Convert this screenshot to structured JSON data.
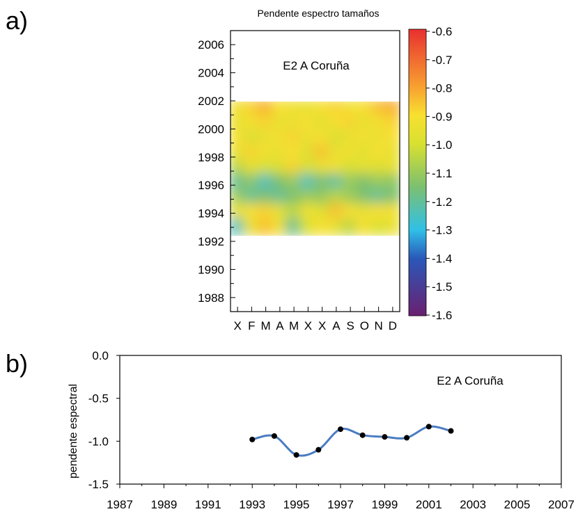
{
  "panels": {
    "a_label": "a)",
    "b_label": "b)"
  },
  "chart_data": [
    {
      "type": "heatmap",
      "title": "Pendente espectro tamaños",
      "annotation": "E2 A Coruña",
      "x_categories": [
        "X",
        "F",
        "M",
        "A",
        "M",
        "X",
        "X",
        "A",
        "S",
        "O",
        "N",
        "D"
      ],
      "y_ticks": [
        1988,
        1990,
        1992,
        1994,
        1996,
        1998,
        2000,
        2002,
        2004,
        2006
      ],
      "ylim": [
        1987,
        2007
      ],
      "data_year_range": [
        1992.5,
        2002
      ],
      "rows": [
        {
          "year": 1993,
          "values": [
            -1.25,
            -0.95,
            -0.85,
            -0.92,
            -1.2,
            -1.0,
            -0.9,
            -0.95,
            -1.05,
            -0.9,
            -1.0,
            -0.95
          ]
        },
        {
          "year": 1994,
          "values": [
            -0.95,
            -0.9,
            -0.88,
            -0.95,
            -1.05,
            -0.92,
            -0.98,
            -0.85,
            -0.9,
            -0.95,
            -0.9,
            -0.92
          ]
        },
        {
          "year": 1995,
          "values": [
            -1.1,
            -1.2,
            -1.15,
            -1.2,
            -1.15,
            -1.1,
            -1.12,
            -1.05,
            -1.1,
            -1.15,
            -1.2,
            -1.15
          ]
        },
        {
          "year": 1996,
          "values": [
            -1.2,
            -1.12,
            -1.25,
            -1.15,
            -1.1,
            -1.25,
            -1.15,
            -1.22,
            -1.1,
            -1.15,
            -1.1,
            -1.12
          ]
        },
        {
          "year": 1997,
          "values": [
            -1.05,
            -0.95,
            -1.0,
            -0.98,
            -0.88,
            -1.0,
            -0.95,
            -0.92,
            -1.0,
            -0.95,
            -0.98,
            -0.95
          ]
        },
        {
          "year": 1998,
          "values": [
            -0.95,
            -0.88,
            -0.92,
            -0.95,
            -0.9,
            -0.98,
            -0.85,
            -0.95,
            -0.92,
            -0.98,
            -0.9,
            -0.95
          ]
        },
        {
          "year": 1999,
          "values": [
            -0.9,
            -1.0,
            -0.95,
            -0.92,
            -0.88,
            -0.95,
            -0.9,
            -1.0,
            -0.95,
            -0.92,
            -0.95,
            -0.9
          ]
        },
        {
          "year": 2000,
          "values": [
            -0.95,
            -0.92,
            -0.88,
            -0.95,
            -0.95,
            -0.9,
            -0.98,
            -0.9,
            -0.88,
            -0.95,
            -0.92,
            -0.88
          ]
        },
        {
          "year": 2001,
          "values": [
            -0.92,
            -0.88,
            -0.82,
            -0.9,
            -0.92,
            -0.95,
            -0.9,
            -0.88,
            -0.92,
            -0.9,
            -0.85,
            -0.82
          ]
        }
      ],
      "colorbar": {
        "ticks": [
          "-0.6",
          "-0.7",
          "-0.8",
          "-0.9",
          "-1.0",
          "-1.1",
          "-1.2",
          "-1.3",
          "-1.4",
          "-1.5",
          "-1.6"
        ],
        "range": [
          -1.6,
          -0.6
        ],
        "stops": [
          {
            "v": -1.6,
            "color": "#6a2070"
          },
          {
            "v": -1.4,
            "color": "#2a58b8"
          },
          {
            "v": -1.3,
            "color": "#30c0e8"
          },
          {
            "v": -1.15,
            "color": "#7cc070"
          },
          {
            "v": -1.0,
            "color": "#d8e030"
          },
          {
            "v": -0.9,
            "color": "#f8e030"
          },
          {
            "v": -0.8,
            "color": "#f8a030"
          },
          {
            "v": -0.6,
            "color": "#e83030"
          }
        ]
      }
    },
    {
      "type": "line",
      "annotation": "E2 A Coruña",
      "ylabel": "pendente espectral",
      "xlim": [
        1987,
        2007
      ],
      "ylim": [
        -1.5,
        0.0
      ],
      "x_ticks": [
        "1987",
        "1989",
        "1991",
        "1993",
        "1995",
        "1997",
        "1999",
        "2001",
        "2003",
        "2005",
        "2007"
      ],
      "y_ticks": [
        "0.0",
        "-0.5",
        "-1.0",
        "-1.5"
      ],
      "line_color": "#4a7cc0",
      "series": [
        {
          "x": [
            1993,
            1994,
            1995,
            1996,
            1997,
            1998,
            1999,
            2000,
            2001,
            2002
          ],
          "y": [
            -0.98,
            -0.94,
            -1.16,
            -1.1,
            -0.86,
            -0.93,
            -0.95,
            -0.96,
            -0.83,
            -0.88
          ]
        }
      ]
    }
  ]
}
